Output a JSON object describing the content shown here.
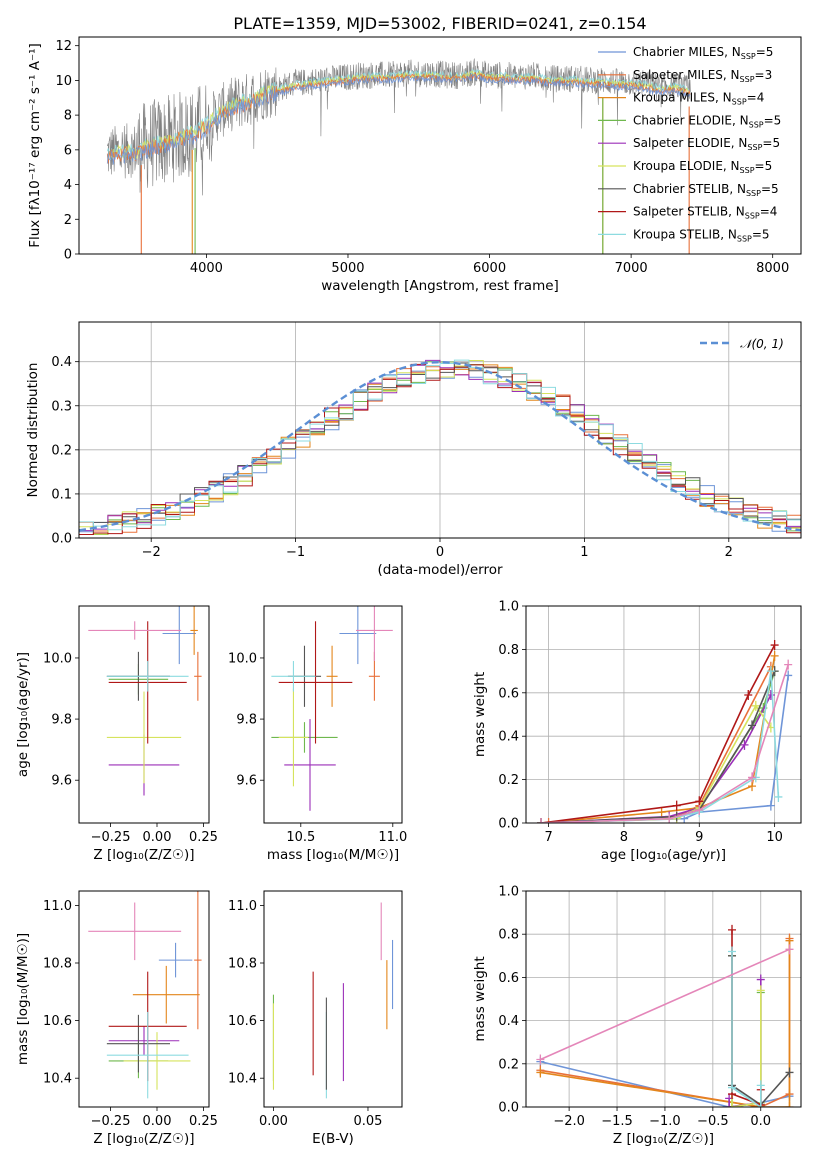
{
  "colors": {
    "Chabrier MILES": "#6f95d8",
    "Salpeter MILES": "#e8703a",
    "Kroupa MILES": "#e3861c",
    "Chabrier ELODIE": "#6fb84e",
    "Salpeter ELODIE": "#9b2fb8",
    "Kroupa ELODIE": "#d6e35e",
    "Chabrier STELIB": "#555555",
    "Salpeter STELIB": "#b01818",
    "Kroupa STELIB": "#8ddbe0",
    "extra_pink": "#e486b9",
    "spectrum_data": "#808080",
    "gaussian": "#5b8fd4"
  },
  "chart_data": [
    {
      "id": "spectrum",
      "type": "line",
      "title": "PLATE=1359, MJD=53002, FIBERID=0241, z=0.154",
      "xlabel": "wavelength [Angstrom, rest frame]",
      "ylabel": "Flux [fλ10⁻¹⁷ erg cm⁻² s⁻¹ A⁻¹]",
      "xlim": [
        3100,
        8200
      ],
      "ylim": [
        0,
        12.5
      ],
      "xticks": [
        4000,
        5000,
        6000,
        7000,
        8000
      ],
      "yticks": [
        0,
        2,
        4,
        6,
        8,
        10,
        12
      ],
      "legend_position": "upper-right",
      "legend": [
        {
          "series": "Chabrier MILES",
          "text": "Chabrier MILES, N",
          "sub": "SSP",
          "n": "=5"
        },
        {
          "series": "Salpeter MILES",
          "text": "Salpeter MILES, N",
          "sub": "SSP",
          "n": "=3"
        },
        {
          "series": "Kroupa MILES",
          "text": "Kroupa MILES, N",
          "sub": "SSP",
          "n": "=4"
        },
        {
          "series": "Chabrier ELODIE",
          "text": "Chabrier ELODIE, N",
          "sub": "SSP",
          "n": "=5"
        },
        {
          "series": "Salpeter ELODIE",
          "text": "Salpeter ELODIE, N",
          "sub": "SSP",
          "n": "=5"
        },
        {
          "series": "Kroupa ELODIE",
          "text": "Kroupa ELODIE, N",
          "sub": "SSP",
          "n": "=5"
        },
        {
          "series": "Chabrier STELIB",
          "text": "Chabrier STELIB, N",
          "sub": "SSP",
          "n": "=5"
        },
        {
          "series": "Salpeter STELIB",
          "text": "Salpeter STELIB, N",
          "sub": "SSP",
          "n": "=4"
        },
        {
          "series": "Kroupa STELIB",
          "text": "Kroupa STELIB, N",
          "sub": "SSP",
          "n": "=5"
        }
      ],
      "envelope_x": [
        3300,
        3400,
        3500,
        3600,
        3700,
        3800,
        3900,
        4000,
        4100,
        4200,
        4300,
        4400,
        4500,
        4600,
        4700,
        4800,
        4900,
        5000,
        5100,
        5200,
        5300,
        5400,
        5500,
        5600,
        5700,
        5800,
        5900,
        6000,
        6100,
        6200,
        6300,
        6400,
        6500,
        6600,
        6700,
        6800,
        6900,
        7000,
        7100,
        7200,
        7300,
        7400
      ],
      "envelope_y": [
        5.8,
        5.9,
        6.0,
        6.3,
        6.5,
        6.8,
        7.0,
        7.5,
        8.2,
        8.7,
        8.9,
        9.3,
        9.5,
        9.8,
        9.9,
        10.0,
        10.1,
        10.2,
        10.3,
        10.3,
        10.3,
        10.4,
        10.4,
        10.4,
        10.3,
        10.3,
        10.5,
        10.3,
        10.3,
        10.2,
        10.3,
        10.1,
        10.1,
        10.1,
        10.0,
        10.0,
        9.9,
        9.9,
        9.8,
        9.6,
        9.7,
        9.5
      ],
      "model_cutoffs": [
        {
          "series": "Salpeter MILES",
          "start_x": 3540,
          "end_x": 7410
        },
        {
          "series": "Kroupa MILES",
          "start_x": 3900,
          "end_x": 6800
        },
        {
          "series": "Chabrier ELODIE",
          "start_x": 3920,
          "end_x": 6800
        }
      ]
    },
    {
      "id": "residuals",
      "type": "step",
      "xlabel": "(data-model)/error",
      "ylabel": "Normed distribution",
      "xlim": [
        -2.5,
        2.5
      ],
      "ylim": [
        0,
        0.49
      ],
      "xticks": [
        -2,
        -1,
        0,
        1,
        2
      ],
      "xtick_labels": [
        "−2",
        "−1",
        "0",
        "1",
        "2"
      ],
      "yticks": [
        0.0,
        0.1,
        0.2,
        0.3,
        0.4
      ],
      "grid": true,
      "legend_position": "upper-right",
      "legend": [
        {
          "series": "gaussian",
          "text": "𝒩(0, 1)"
        }
      ],
      "bin_width": 0.1,
      "bin_start": -2.5,
      "reference_curve": "standard normal N(0,1)"
    },
    {
      "id": "age_vs_Z",
      "type": "errorbar",
      "xlabel": "Z [log₁₀(Z/Z☉)]",
      "ylabel": "age  [log₁₀(age/yr)]",
      "xlim": [
        -0.42,
        0.28
      ],
      "ylim": [
        9.46,
        10.17
      ],
      "xticks": [
        -0.25,
        0.0,
        0.25
      ],
      "xtick_labels": [
        "−0.25",
        "0.00",
        "0.25"
      ],
      "yticks": [
        9.6,
        9.8,
        10.0
      ],
      "points": [
        {
          "series": "Chabrier MILES",
          "x": 0.12,
          "y": 10.08,
          "xerr": 0.09,
          "yerr": 0.1
        },
        {
          "series": "Salpeter MILES",
          "x": 0.22,
          "y": 9.94,
          "xerr": 0.02,
          "yerr": 0.08
        },
        {
          "series": "Kroupa MILES",
          "x": 0.2,
          "y": 10.09,
          "xerr": 0.02,
          "yerr": 0.08
        },
        {
          "series": "Chabrier ELODIE",
          "x": -0.1,
          "y": 9.93,
          "xerr": 0.16,
          "yerr": 0.05
        },
        {
          "series": "Salpeter ELODIE",
          "x": -0.07,
          "y": 9.65,
          "xerr": 0.19,
          "yerr": 0.1
        },
        {
          "series": "Kroupa ELODIE",
          "x": -0.07,
          "y": 9.74,
          "xerr": 0.2,
          "yerr": 0.15
        },
        {
          "series": "Chabrier STELIB",
          "x": -0.1,
          "y": 9.94,
          "xerr": 0.17,
          "yerr": 0.08
        },
        {
          "series": "Salpeter STELIB",
          "x": -0.05,
          "y": 9.92,
          "xerr": 0.21,
          "yerr": 0.2
        },
        {
          "series": "Kroupa STELIB",
          "x": -0.05,
          "y": 9.94,
          "xerr": 0.22,
          "yerr": 0.05
        },
        {
          "series": "extra_pink",
          "x": -0.12,
          "y": 10.09,
          "xerr": 0.25,
          "yerr": 0.03
        }
      ]
    },
    {
      "id": "age_vs_mass",
      "type": "errorbar",
      "xlabel": "mass [log₁₀(M/M☉)]",
      "xlim": [
        10.3,
        11.05
      ],
      "ylim": [
        9.46,
        10.17
      ],
      "xticks": [
        10.5,
        11.0
      ],
      "xtick_labels": [
        "10.5",
        "11.0"
      ],
      "yticks": [
        9.6,
        9.8,
        10.0
      ],
      "points": [
        {
          "series": "Chabrier MILES",
          "x": 10.81,
          "y": 10.08,
          "xerr": 0.1,
          "yerr": 0.1
        },
        {
          "series": "Salpeter MILES",
          "x": 10.9,
          "y": 9.94,
          "xerr": 0.03,
          "yerr": 0.08
        },
        {
          "series": "Kroupa MILES",
          "x": 10.67,
          "y": 9.94,
          "xerr": 0.03,
          "yerr": 0.1
        },
        {
          "series": "Chabrier ELODIE",
          "x": 10.52,
          "y": 9.74,
          "xerr": 0.18,
          "yerr": 0.05
        },
        {
          "series": "Salpeter ELODIE",
          "x": 10.55,
          "y": 9.65,
          "xerr": 0.14,
          "yerr": 0.15
        },
        {
          "series": "Kroupa ELODIE",
          "x": 10.46,
          "y": 9.74,
          "xerr": 0.08,
          "yerr": 0.16
        },
        {
          "series": "Chabrier STELIB",
          "x": 10.52,
          "y": 9.94,
          "xerr": 0.09,
          "yerr": 0.1
        },
        {
          "series": "Salpeter STELIB",
          "x": 10.58,
          "y": 9.92,
          "xerr": 0.2,
          "yerr": 0.2
        },
        {
          "series": "Kroupa STELIB",
          "x": 10.46,
          "y": 9.94,
          "xerr": 0.12,
          "yerr": 0.05
        },
        {
          "series": "extra_pink",
          "x": 10.9,
          "y": 10.09,
          "xerr": 0.1,
          "yerr": 0.1
        }
      ]
    },
    {
      "id": "weight_vs_age",
      "type": "line",
      "xlabel": "age  [log₁₀(age/yr)]",
      "ylabel": "mass weight",
      "xlim": [
        6.7,
        10.35
      ],
      "ylim": [
        0,
        1.0
      ],
      "xticks": [
        7,
        8,
        9,
        10
      ],
      "yticks": [
        0.0,
        0.2,
        0.4,
        0.6,
        0.8,
        1.0
      ],
      "grid": true,
      "series": [
        {
          "name": "Chabrier MILES",
          "x": [
            6.9,
            8.8,
            9.0,
            9.95,
            10.18
          ],
          "y": [
            0.0,
            0.02,
            0.05,
            0.08,
            0.68
          ]
        },
        {
          "name": "Salpeter MILES",
          "x": [
            7.0,
            8.7,
            9.0,
            9.95
          ],
          "y": [
            0.0,
            0.03,
            0.08,
            0.72
          ]
        },
        {
          "name": "Kroupa MILES",
          "x": [
            6.9,
            8.5,
            9.0,
            9.7,
            10.0
          ],
          "y": [
            0.0,
            0.05,
            0.07,
            0.17,
            0.77
          ]
        },
        {
          "name": "Chabrier ELODIE",
          "x": [
            6.9,
            8.6,
            9.0,
            9.85,
            10.0
          ],
          "y": [
            0.0,
            0.02,
            0.06,
            0.53,
            0.7
          ]
        },
        {
          "name": "Salpeter ELODIE",
          "x": [
            6.9,
            8.6,
            9.0,
            9.6,
            9.95
          ],
          "y": [
            0.0,
            0.03,
            0.07,
            0.36,
            0.59
          ]
        },
        {
          "name": "Kroupa ELODIE",
          "x": [
            6.9,
            8.7,
            9.0,
            9.75,
            9.95
          ],
          "y": [
            0.0,
            0.02,
            0.07,
            0.54,
            0.44
          ]
        },
        {
          "name": "Chabrier STELIB",
          "x": [
            6.9,
            8.7,
            9.0,
            9.7,
            10.0
          ],
          "y": [
            0.0,
            0.03,
            0.06,
            0.45,
            0.7
          ]
        },
        {
          "name": "Salpeter STELIB",
          "x": [
            6.9,
            8.7,
            9.0,
            9.65,
            10.0
          ],
          "y": [
            0.0,
            0.08,
            0.1,
            0.59,
            0.82
          ]
        },
        {
          "name": "Kroupa STELIB",
          "x": [
            6.9,
            8.6,
            9.0,
            9.75,
            9.95,
            10.05
          ],
          "y": [
            0.0,
            0.02,
            0.05,
            0.21,
            0.7,
            0.12
          ]
        },
        {
          "name": "extra_pink",
          "x": [
            6.9,
            8.6,
            9.0,
            9.7,
            10.18
          ],
          "y": [
            0.0,
            0.02,
            0.06,
            0.21,
            0.73
          ]
        }
      ]
    },
    {
      "id": "mass_vs_Z",
      "type": "errorbar",
      "xlabel": "Z [log₁₀(Z/Z☉)]",
      "ylabel": "mass [log₁₀(M/M☉)]",
      "xlim": [
        -0.42,
        0.28
      ],
      "ylim": [
        10.3,
        11.05
      ],
      "xticks": [
        -0.25,
        0.0,
        0.25
      ],
      "xtick_labels": [
        "−0.25",
        "0.00",
        "0.25"
      ],
      "yticks": [
        10.4,
        10.6,
        10.8,
        11.0
      ],
      "points": [
        {
          "series": "Chabrier MILES",
          "x": 0.1,
          "y": 10.81,
          "xerr": 0.09,
          "yerr": 0.06
        },
        {
          "series": "Salpeter MILES",
          "x": 0.22,
          "y": 10.81,
          "xerr": 0.02,
          "yerr": 0.24
        },
        {
          "series": "Kroupa MILES",
          "x": 0.05,
          "y": 10.69,
          "xerr": 0.18,
          "yerr": 0.1
        },
        {
          "series": "Chabrier ELODIE",
          "x": -0.1,
          "y": 10.46,
          "xerr": 0.16,
          "yerr": 0.06
        },
        {
          "series": "Salpeter ELODIE",
          "x": -0.07,
          "y": 10.53,
          "xerr": 0.19,
          "yerr": 0.05
        },
        {
          "series": "Kroupa ELODIE",
          "x": 0.0,
          "y": 10.46,
          "xerr": 0.18,
          "yerr": 0.1
        },
        {
          "series": "Chabrier STELIB",
          "x": -0.1,
          "y": 10.52,
          "xerr": 0.17,
          "yerr": 0.1
        },
        {
          "series": "Salpeter STELIB",
          "x": -0.05,
          "y": 10.58,
          "xerr": 0.21,
          "yerr": 0.19
        },
        {
          "series": "Kroupa STELIB",
          "x": -0.05,
          "y": 10.48,
          "xerr": 0.22,
          "yerr": 0.15
        },
        {
          "series": "extra_pink",
          "x": -0.12,
          "y": 10.91,
          "xerr": 0.25,
          "yerr": 0.1
        }
      ]
    },
    {
      "id": "mass_vs_ebv",
      "type": "errorbar",
      "xlabel": "E(B-V)",
      "xlim": [
        -0.005,
        0.068
      ],
      "ylim": [
        10.3,
        11.05
      ],
      "xticks": [
        0.0,
        0.05
      ],
      "xtick_labels": [
        "0.00",
        "0.05"
      ],
      "yticks": [
        10.4,
        10.6,
        10.8,
        11.0
      ],
      "points": [
        {
          "series": "Chabrier ELODIE",
          "x": 0.0,
          "y": 10.54,
          "xerr": 0,
          "yerr": 0.15
        },
        {
          "series": "Kroupa ELODIE",
          "x": 0.0,
          "y": 10.51,
          "xerr": 0,
          "yerr": 0.15
        },
        {
          "series": "Salpeter STELIB",
          "x": 0.021,
          "y": 10.59,
          "xerr": 0,
          "yerr": 0.18
        },
        {
          "series": "Kroupa STELIB",
          "x": 0.028,
          "y": 10.48,
          "xerr": 0,
          "yerr": 0.15
        },
        {
          "series": "Chabrier STELIB",
          "x": 0.028,
          "y": 10.52,
          "xerr": 0,
          "yerr": 0.16
        },
        {
          "series": "Salpeter ELODIE",
          "x": 0.037,
          "y": 10.56,
          "xerr": 0,
          "yerr": 0.17
        },
        {
          "series": "extra_pink",
          "x": 0.057,
          "y": 10.91,
          "xerr": 0,
          "yerr": 0.1
        },
        {
          "series": "Kroupa MILES",
          "x": 0.06,
          "y": 10.69,
          "xerr": 0,
          "yerr": 0.12
        },
        {
          "series": "Chabrier MILES",
          "x": 0.063,
          "y": 10.76,
          "xerr": 0,
          "yerr": 0.12
        }
      ]
    },
    {
      "id": "weight_vs_Z",
      "type": "line",
      "xlabel": "Z [log₁₀(Z/Z☉)]",
      "ylabel": "mass weight",
      "xlim": [
        -2.45,
        0.42
      ],
      "ylim": [
        0,
        1.0
      ],
      "xticks": [
        -2.0,
        -1.5,
        -1.0,
        -0.5,
        0.0
      ],
      "xtick_labels": [
        "−2.0",
        "−1.5",
        "−1.0",
        "−0.5",
        "0.0"
      ],
      "yticks": [
        0.0,
        0.2,
        0.4,
        0.6,
        0.8,
        1.0
      ],
      "grid": true,
      "series": [
        {
          "name": "Chabrier MILES",
          "x": [
            -2.3,
            -0.33,
            0.0,
            0.3
          ],
          "y": [
            0.21,
            0.0,
            0.02,
            0.05
          ]
        },
        {
          "name": "Salpeter MILES",
          "x": [
            -2.3,
            0.0,
            0.3,
            0.3
          ],
          "y": [
            0.17,
            0.0,
            0.06,
            0.78
          ]
        },
        {
          "name": "Kroupa MILES",
          "x": [
            -2.3,
            0.0,
            0.3,
            0.3
          ],
          "y": [
            0.16,
            0.0,
            0.0,
            0.77
          ]
        },
        {
          "name": "Chabrier ELODIE",
          "x": [
            -0.3,
            -0.3,
            0.0,
            0.0
          ],
          "y": [
            0.7,
            0.0,
            0.02,
            0.53
          ]
        },
        {
          "name": "Salpeter ELODIE",
          "x": [
            -0.33,
            -0.33,
            0.0,
            0.0
          ],
          "y": [
            0.04,
            0.0,
            0.02,
            0.59
          ]
        },
        {
          "name": "Kroupa ELODIE",
          "x": [
            -0.3,
            -0.3,
            0.0,
            0.0
          ],
          "y": [
            0.7,
            0.0,
            0.02,
            0.54
          ]
        },
        {
          "name": "Chabrier STELIB",
          "x": [
            -0.3,
            -0.3,
            0.0,
            0.3
          ],
          "y": [
            0.7,
            0.1,
            0.01,
            0.16
          ]
        },
        {
          "name": "Salpeter STELIB",
          "x": [
            -0.3,
            -0.3,
            0.0,
            0.0
          ],
          "y": [
            0.82,
            0.06,
            0.01,
            0.08
          ]
        },
        {
          "name": "Kroupa STELIB",
          "x": [
            -0.3,
            -0.3,
            0.0,
            0.0
          ],
          "y": [
            0.72,
            0.09,
            0.0,
            0.1
          ]
        },
        {
          "name": "extra_pink",
          "x": [
            -2.3,
            0.3
          ],
          "y": [
            0.22,
            0.73
          ]
        }
      ]
    }
  ]
}
